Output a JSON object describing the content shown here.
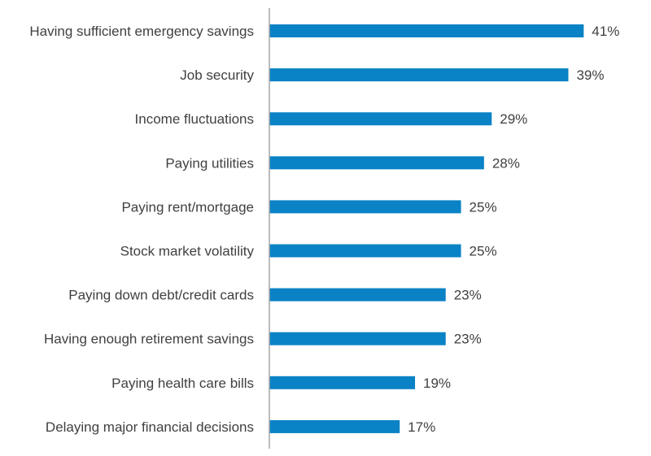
{
  "chart_data": {
    "type": "bar",
    "orientation": "horizontal",
    "categories": [
      "Having sufficient emergency savings",
      "Job security",
      "Income fluctuations",
      "Paying utilities",
      "Paying rent/mortgage",
      "Stock market volatility",
      "Paying down debt/credit cards",
      "Having enough retirement savings",
      "Paying health care bills",
      "Delaying major financial decisions"
    ],
    "values": [
      41,
      39,
      29,
      28,
      25,
      25,
      23,
      23,
      19,
      17
    ],
    "value_labels": [
      "41%",
      "39%",
      "29%",
      "28%",
      "25%",
      "25%",
      "23%",
      "23%",
      "19%",
      "17%"
    ],
    "unit": "%",
    "xlim": [
      0,
      45
    ],
    "grid": false,
    "legend": "none",
    "bar_color": "#0a82c6",
    "axis_color": "#a6a6a6"
  }
}
